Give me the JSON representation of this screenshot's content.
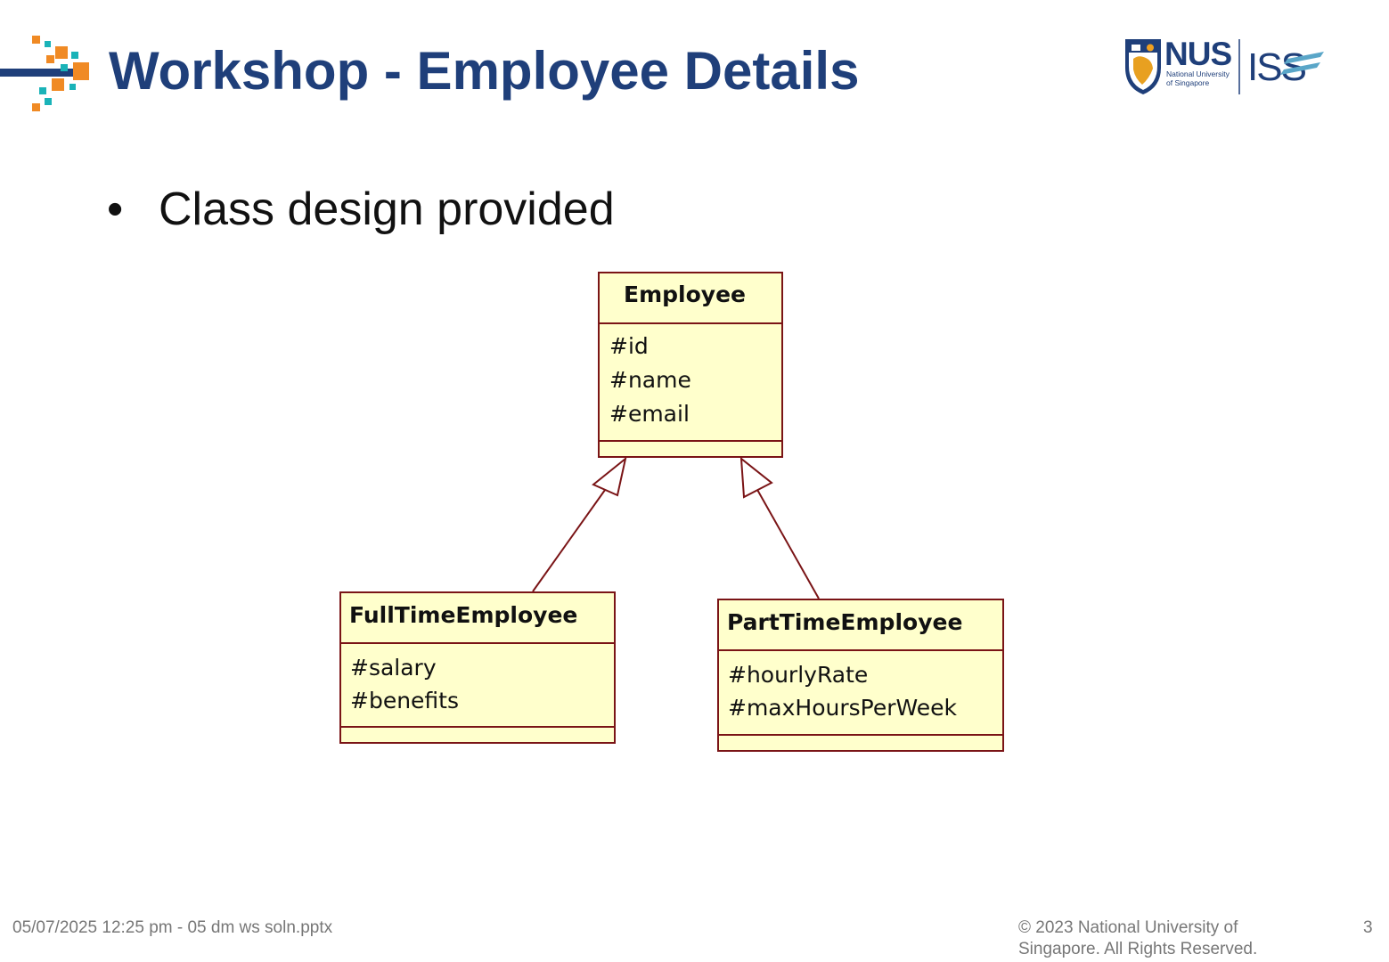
{
  "slide": {
    "title": "Workshop - Employee Details",
    "bullet": "Class design provided",
    "logo": {
      "nus_text": "NUS",
      "nus_subtitle_line1": "National University",
      "nus_subtitle_line2": "of Singapore",
      "iss_text": "ISS"
    }
  },
  "diagram": {
    "classes": [
      {
        "name": "Employee",
        "attributes": [
          "#id",
          "#name",
          "#email"
        ]
      },
      {
        "name": "FullTimeEmployee",
        "attributes": [
          "#salary",
          "#benefits"
        ]
      },
      {
        "name": "PartTimeEmployee",
        "attributes": [
          "#hourlyRate",
          "#maxHoursPerWeek"
        ]
      }
    ],
    "relations": [
      {
        "type": "generalization",
        "from": "FullTimeEmployee",
        "to": "Employee"
      },
      {
        "type": "generalization",
        "from": "PartTimeEmployee",
        "to": "Employee"
      }
    ],
    "colors": {
      "class_fill": "#ffffcc",
      "class_border": "#7a1416"
    }
  },
  "footer": {
    "left": "05/07/2025 12:25 pm - 05 dm ws soln.pptx",
    "copyright_line1": "© 2023 National University of",
    "copyright_line2": "Singapore. All Rights Reserved.",
    "page_number": "3"
  },
  "colors": {
    "title": "#1f3f7a",
    "accent_orange": "#f08a24",
    "accent_teal": "#1ab3b8",
    "accent_navy": "#1f3f7a"
  }
}
